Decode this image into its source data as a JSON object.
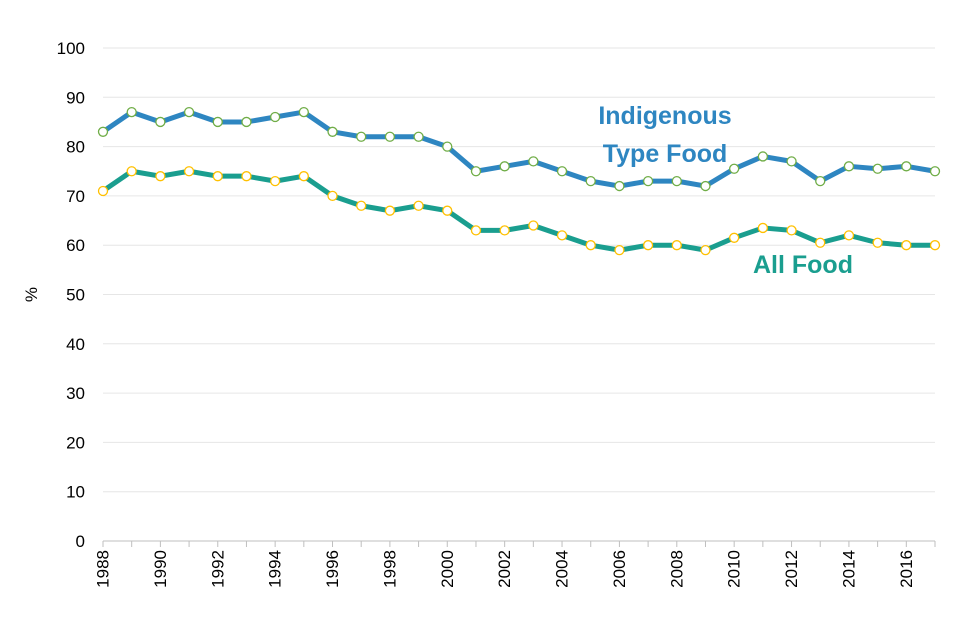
{
  "chart_data": {
    "type": "line",
    "title": "",
    "xlabel": "",
    "ylabel": "%",
    "ylim": [
      0,
      100
    ],
    "yticks": [
      "0",
      "10",
      "20",
      "30",
      "40",
      "50",
      "60",
      "70",
      "80",
      "90",
      "100"
    ],
    "x": [
      1988,
      1989,
      1990,
      1991,
      1992,
      1993,
      1994,
      1995,
      1996,
      1997,
      1998,
      1999,
      2000,
      2001,
      2002,
      2003,
      2004,
      2005,
      2006,
      2007,
      2008,
      2009,
      2010,
      2011,
      2012,
      2013,
      2014,
      2015,
      2016,
      2017
    ],
    "xtick_labels": [
      "1988",
      "1990",
      "1992",
      "1994",
      "1996",
      "1998",
      "2000",
      "2002",
      "2004",
      "2006",
      "2008",
      "2010",
      "2012",
      "2014",
      "2016"
    ],
    "grid": true,
    "series": [
      {
        "name": "Indigenous Type Food",
        "label_lines": [
          "Indigenous",
          "Type Food"
        ],
        "line_color": "#2e86c1",
        "marker_edge": "#70ad47",
        "label_color": "#2e86c1",
        "values": [
          83,
          87,
          85,
          87,
          85,
          85,
          86,
          87,
          83,
          82,
          82,
          82,
          80,
          75,
          76,
          77,
          75,
          73,
          72,
          73,
          73,
          72,
          75.5,
          78,
          77,
          73,
          76,
          75.5,
          76,
          75
        ]
      },
      {
        "name": "All Food",
        "label_lines": [
          "All Food"
        ],
        "line_color": "#1a9e8f",
        "marker_edge": "#ffc000",
        "label_color": "#1a9e8f",
        "values": [
          71,
          75,
          74,
          75,
          74,
          74,
          73,
          74,
          70,
          68,
          67,
          68,
          67,
          63,
          63,
          64,
          62,
          60,
          59,
          60,
          60,
          59,
          61.5,
          63.5,
          63,
          60.5,
          62,
          60.5,
          60,
          60
        ]
      }
    ]
  }
}
